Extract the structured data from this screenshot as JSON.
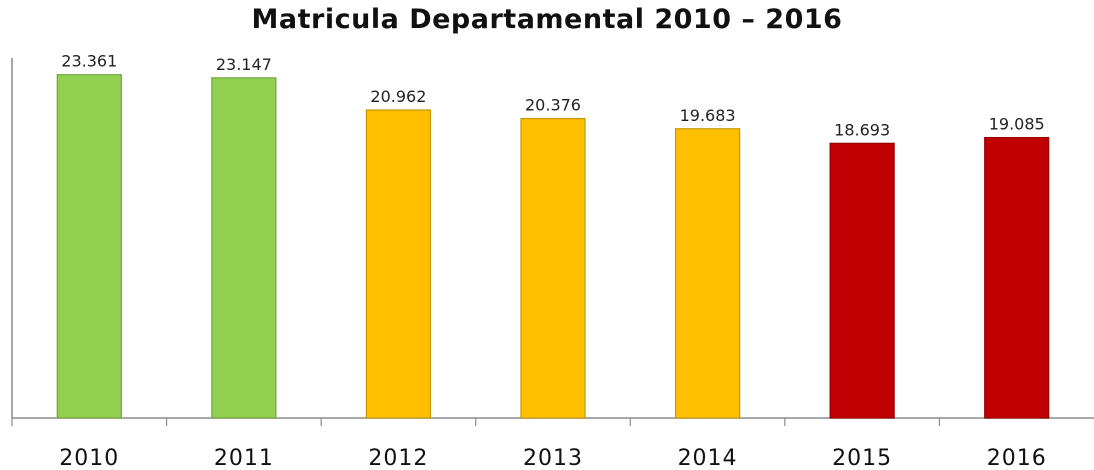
{
  "chart_data": {
    "type": "bar",
    "title": "Matricula Departamental 2010 – 2016",
    "categories": [
      "2010",
      "2011",
      "2012",
      "2013",
      "2014",
      "2015",
      "2016"
    ],
    "values": [
      23361,
      23147,
      20962,
      20376,
      19683,
      18693,
      19085
    ],
    "value_labels": [
      "23.361",
      "23.147",
      "20.962",
      "20.376",
      "19.683",
      "18.693",
      "19.085"
    ],
    "bar_colors": [
      "#92d050",
      "#92d050",
      "#ffc000",
      "#ffc000",
      "#ffc000",
      "#c00000",
      "#c00000"
    ],
    "ylim": [
      0,
      24500
    ],
    "xlabel": "",
    "ylabel": "",
    "grid": false,
    "legend": "none"
  }
}
